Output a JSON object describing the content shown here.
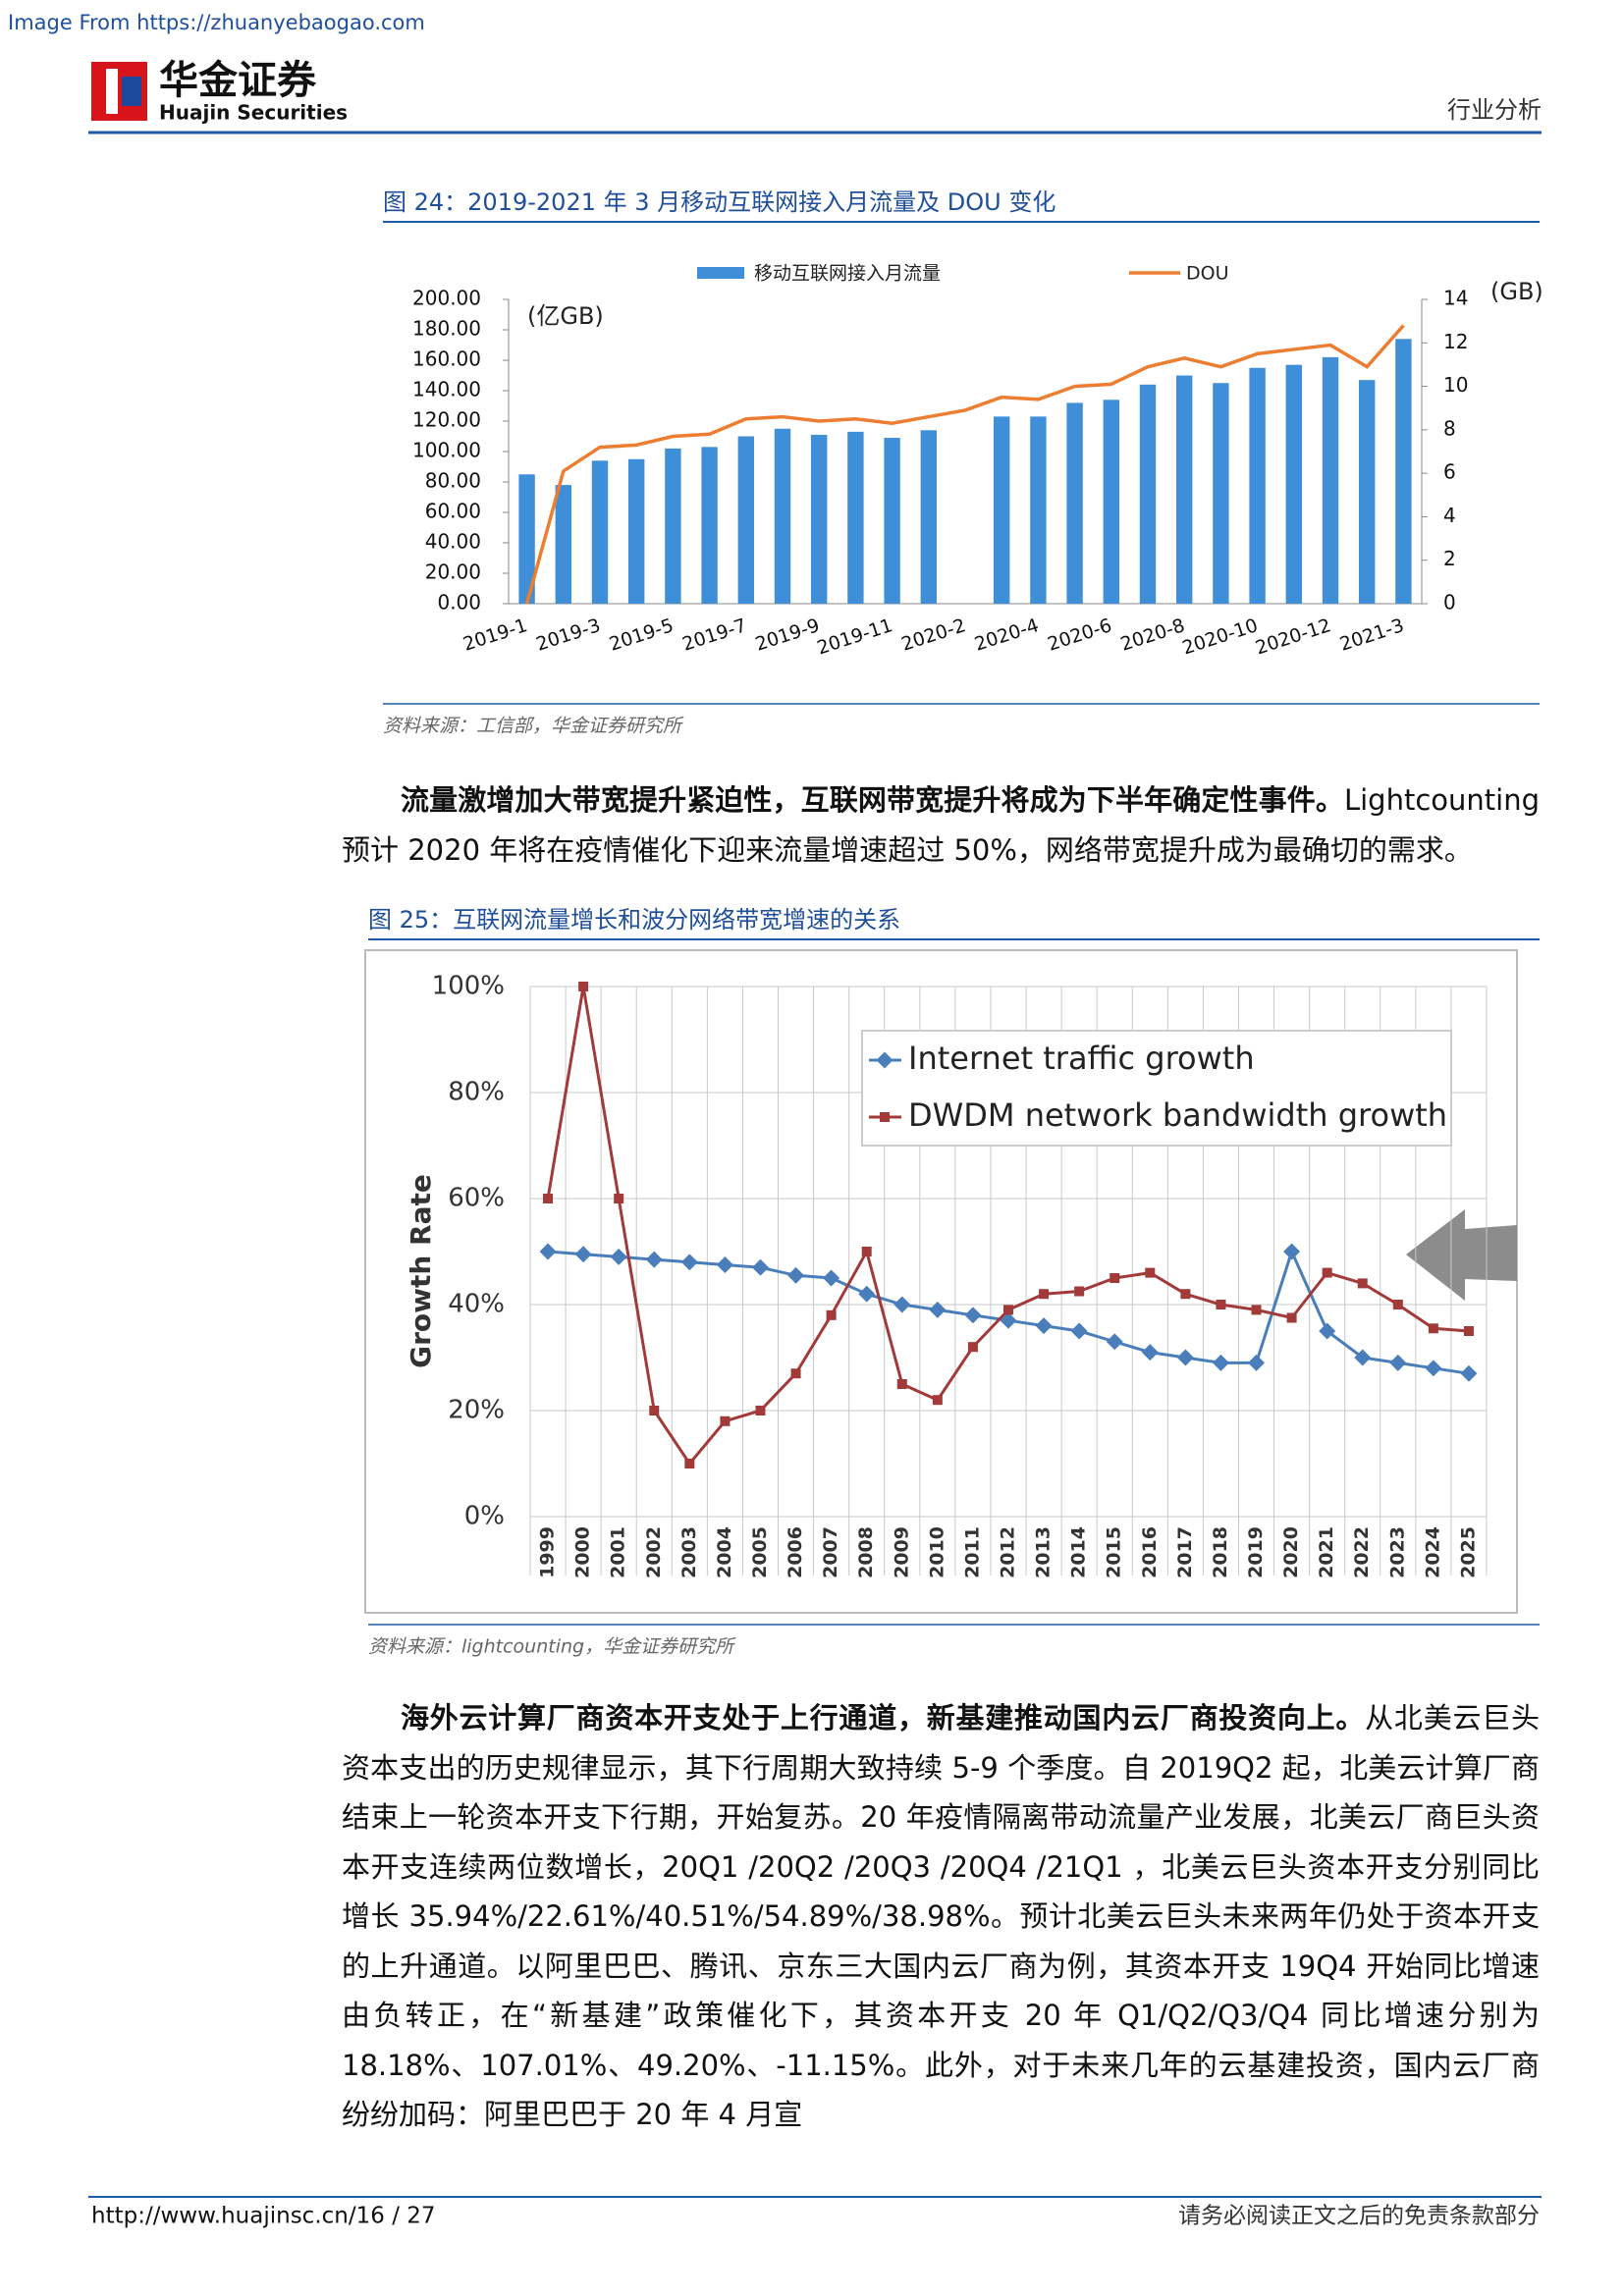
{
  "header": {
    "source_note": "Image From https://zhuanyebaogao.com",
    "brand": "华金证券",
    "brand_en": "Huajin Securities",
    "section": "行业分析"
  },
  "figures": [
    {
      "caption": "图 24：2019-2021 年 3 月移动互联网接入月流量及 DOU 变化",
      "source": "资料来源：工信部，华金证券研究所"
    },
    {
      "caption": "图 25：互联网流量增长和波分网络带宽增速的关系",
      "source": "资料来源：lightcounting，华金证券研究所"
    }
  ],
  "chart_data": [
    {
      "type": "combo",
      "categories": [
        "2019-1",
        null,
        "2019-3",
        null,
        "2019-5",
        null,
        "2019-7",
        null,
        "2019-9",
        null,
        "2019-11",
        null,
        "2020-2",
        null,
        "2020-4",
        null,
        "2020-6",
        null,
        "2020-8",
        null,
        "2020-10",
        null,
        "2020-12",
        null,
        "2021-3"
      ],
      "series": [
        {
          "name": "移动互联网接入月流量",
          "type": "bar",
          "color": "#3f8fd8",
          "values": [
            85,
            78,
            94,
            95,
            102,
            103,
            110,
            115,
            111,
            113,
            109,
            114,
            null,
            123,
            123,
            132,
            134,
            144,
            150,
            145,
            155,
            157,
            162,
            147,
            174
          ]
        },
        {
          "name": "DOU",
          "type": "line",
          "axis": "y2",
          "color": "#ed7d31",
          "values": [
            0,
            6.1,
            7.2,
            7.3,
            7.7,
            7.8,
            8.5,
            8.6,
            8.4,
            8.5,
            8.3,
            8.6,
            8.9,
            9.5,
            9.4,
            10.0,
            10.1,
            10.9,
            11.3,
            10.9,
            11.5,
            11.7,
            11.9,
            10.9,
            12.8
          ]
        }
      ],
      "ylabel": "(亿GB)",
      "y2label": "(GB)",
      "ylim": [
        0,
        200
      ],
      "yticks": [
        {
          "value": 0,
          "label": "0.00"
        },
        {
          "value": 20,
          "label": "20.00"
        },
        {
          "value": 40,
          "label": "40.00"
        },
        {
          "value": 60,
          "label": "60.00"
        },
        {
          "value": 80,
          "label": "80.00"
        },
        {
          "value": 100,
          "label": "100.00"
        },
        {
          "value": 120,
          "label": "120.00"
        },
        {
          "value": 140,
          "label": "140.00"
        },
        {
          "value": 160,
          "label": "160.00"
        },
        {
          "value": 180,
          "label": "180.00"
        },
        {
          "value": 200,
          "label": "200.00"
        }
      ],
      "y2lim": [
        0,
        14
      ],
      "y2ticks": [
        0,
        2,
        4,
        6,
        8,
        10,
        12,
        14
      ],
      "legend": "top"
    },
    {
      "type": "line",
      "categories": [
        "1999",
        "2000",
        "2001",
        "2002",
        "2003",
        "2004",
        "2005",
        "2006",
        "2007",
        "2008",
        "2009",
        "2010",
        "2011",
        "2012",
        "2013",
        "2014",
        "2015",
        "2016",
        "2017",
        "2018",
        "2019",
        "2020",
        "2021",
        "2022",
        "2023",
        "2024",
        "2025"
      ],
      "series": [
        {
          "name": "Internet traffic growth",
          "color": "#4a7ebb",
          "marker": "diamond",
          "values": [
            50,
            49.5,
            49,
            48.5,
            48,
            47.5,
            47,
            45.5,
            45,
            42,
            40,
            39,
            38,
            37,
            36,
            35,
            33,
            31,
            30,
            29,
            29,
            50,
            35,
            30,
            29,
            28,
            27
          ]
        },
        {
          "name": "DWDM network bandwidth growth",
          "color": "#a33a3a",
          "marker": "square",
          "values": [
            60,
            100,
            60,
            20,
            10,
            18,
            20,
            27,
            38,
            50,
            25,
            22,
            32,
            39,
            42,
            42.5,
            45,
            46,
            42,
            40,
            39,
            37.5,
            46,
            44,
            40,
            35.5,
            35
          ]
        }
      ],
      "ylabel": "Growth Rate",
      "ylim": [
        0,
        100
      ],
      "yticks": [
        {
          "value": 0,
          "label": "0%"
        },
        {
          "value": 20,
          "label": "20%"
        },
        {
          "value": 40,
          "label": "40%"
        },
        {
          "value": 60,
          "label": "60%"
        },
        {
          "value": 80,
          "label": "80%"
        },
        {
          "value": 100,
          "label": "100%"
        }
      ],
      "grid": true,
      "legend": "top-right"
    }
  ],
  "paragraphs": [
    {
      "bold": "流量激增加大带宽提升紧迫性，互联网带宽提升将成为下半年确定性事件。",
      "text": "Lightcounting 预计 2020 年将在疫情催化下迎来流量增速超过 50%，网络带宽提升成为最确切的需求。"
    },
    {
      "bold": "海外云计算厂商资本开支处于上行通道，新基建推动国内云厂商投资向上。",
      "text": "从北美云巨头资本支出的历史规律显示，其下行周期大致持续 5-9 个季度。自 2019Q2 起，北美云计算厂商结束上一轮资本开支下行期，开始复苏。20 年疫情隔离带动流量产业发展，北美云厂商巨头资本开支连续两位数增长，20Q1 /20Q2 /20Q3 /20Q4 /21Q1 ，北美云巨头资本开支分别同比增长 35.94%/22.61%/40.51%/54.89%/38.98%。预计北美云巨头未来两年仍处于资本开支的上升通道。以阿里巴巴、腾讯、京东三大国内云厂商为例，其资本开支 19Q4 开始同比增速由负转正，在“新基建”政策催化下，其资本开支 20 年 Q1/Q2/Q3/Q4 同比增速分别为 18.18%、107.01%、49.20%、-11.15%。此外，对于未来几年的云基建投资，国内云厂商纷纷加码：阿里巴巴于 20 年 4 月宣"
    }
  ],
  "footer": {
    "left": "http://www.huajinsc.cn/16 / 27",
    "right": "请务必阅读正文之后的免责条款部分"
  }
}
